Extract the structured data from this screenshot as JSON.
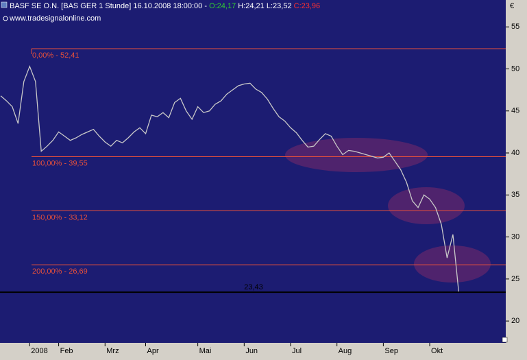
{
  "chart_data": {
    "type": "line",
    "title": "BASF SE O.N. [BAS GER  1 Stunde] 16.10.2008 18:00:00 -",
    "ohlc": {
      "open": "O:24,17",
      "high": "H:24,21",
      "low": "L:23,52",
      "close": "C:23,96"
    },
    "watermark": "www.tradesignalonline.com",
    "currency": "€",
    "categories": [
      null,
      null,
      null,
      null,
      null,
      "2008",
      null,
      null,
      null,
      null,
      "Feb",
      null,
      null,
      null,
      null,
      null,
      null,
      null,
      "Mrz",
      null,
      null,
      null,
      null,
      null,
      null,
      "Apr",
      null,
      null,
      null,
      null,
      null,
      null,
      null,
      null,
      "Mai",
      null,
      null,
      null,
      null,
      null,
      null,
      null,
      "Jun",
      null,
      null,
      null,
      null,
      null,
      null,
      null,
      "Jul",
      null,
      null,
      null,
      null,
      null,
      null,
      null,
      "Aug",
      null,
      null,
      null,
      null,
      null,
      null,
      null,
      "Sep",
      null,
      null,
      null,
      null,
      null,
      null,
      null,
      "Okt",
      null,
      null,
      null,
      null,
      null
    ],
    "series": [
      {
        "name": "BASF SE O.N.",
        "color": "#c8c8c8",
        "values": [
          46.8,
          46.2,
          45.5,
          43.5,
          48.5,
          50.3,
          48.5,
          40.2,
          40.8,
          41.5,
          42.5,
          42,
          41.5,
          41.8,
          42.2,
          42.5,
          42.8,
          42,
          41.3,
          40.8,
          41.5,
          41.2,
          41.8,
          42.5,
          43,
          42.3,
          44.5,
          44.3,
          44.8,
          44.2,
          46,
          46.5,
          45,
          44,
          45.5,
          44.8,
          45,
          45.8,
          46.2,
          47,
          47.5,
          48,
          48.2,
          48.3,
          47.6,
          47.2,
          46.4,
          45.3,
          44.3,
          43.8,
          43,
          42.4,
          41.5,
          40.7,
          40.8,
          41.6,
          42.3,
          42,
          40.8,
          39.8,
          40.3,
          40.2,
          40,
          39.8,
          39.6,
          39.4,
          39.5,
          40,
          39,
          38,
          36.5,
          34.3,
          33.5,
          35,
          34.5,
          33.5,
          31.5,
          27.5,
          30.3,
          23.5
        ]
      }
    ],
    "levels": [
      {
        "value": 52.41,
        "label": "0,00% - 52,41"
      },
      {
        "value": 39.55,
        "label": "100,00% - 39,55"
      },
      {
        "value": 33.12,
        "label": "150,00% - 33,12"
      },
      {
        "value": 26.69,
        "label": "200,00% - 26,69"
      }
    ],
    "last_price": {
      "value": 23.43,
      "label": "23,43"
    },
    "ylim": [
      17.4,
      58.2
    ],
    "yticks": [
      20,
      25,
      30,
      35,
      40,
      45,
      50,
      55
    ],
    "level_color": "#e8503a"
  }
}
